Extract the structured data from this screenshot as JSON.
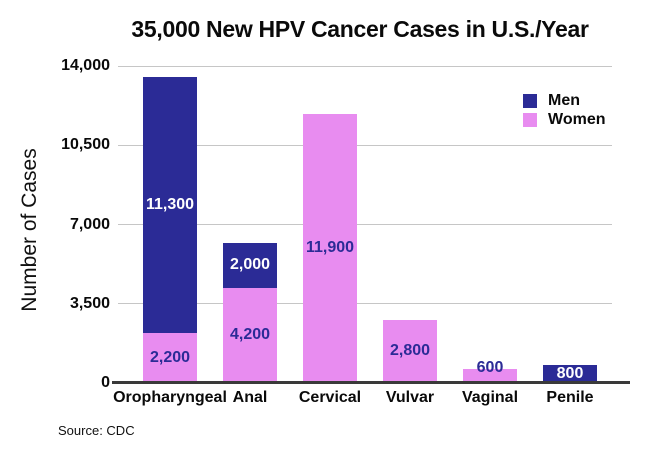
{
  "page": {
    "title": "35,000 New HPV Cancer Cases in U.S./Year",
    "source_note": "Source: CDC"
  },
  "chart_data": {
    "type": "bar",
    "stacked": true,
    "title": "35,000 New HPV Cancer Cases in U.S./Year",
    "ylabel": "Number of Cases",
    "xlabel": "",
    "categories": [
      "Oropharyngeal",
      "Anal",
      "Cervical",
      "Vulvar",
      "Vaginal",
      "Penile"
    ],
    "series": [
      {
        "name": "Men",
        "color": "#2b2b96",
        "label_color": "#ffffff",
        "values": [
          11300,
          2000,
          0,
          0,
          0,
          800
        ],
        "labels": [
          "11,300",
          "2,000",
          "",
          "",
          "",
          "800"
        ]
      },
      {
        "name": "Women",
        "color": "#e88cf0",
        "label_color": "#2b2b96",
        "values": [
          2200,
          4200,
          11900,
          2800,
          600,
          0
        ],
        "labels": [
          "2,200",
          "4,200",
          "11,900",
          "2,800",
          "600",
          ""
        ]
      }
    ],
    "ylim": [
      0,
      14000
    ],
    "yticks": [
      0,
      3500,
      7000,
      10500,
      14000
    ],
    "ytick_labels": [
      "0",
      "3,500",
      "7,000",
      "10,500",
      "14,000"
    ],
    "legend": {
      "position": "top-right",
      "entries": [
        "Men",
        "Women"
      ]
    },
    "grid": true,
    "source": "Source: CDC"
  }
}
